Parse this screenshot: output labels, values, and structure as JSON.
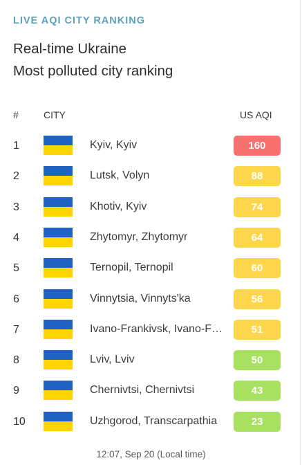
{
  "header": {
    "kicker": "LIVE AQI CITY RANKING",
    "title_line1": "Real-time Ukraine",
    "title_line2": "Most polluted city ranking"
  },
  "columns": {
    "rank": "#",
    "city": "CITY",
    "aqi": "US AQI"
  },
  "rows": [
    {
      "rank": "1",
      "city": "Kyiv, Kyiv",
      "aqi": "160",
      "color": "#f87171"
    },
    {
      "rank": "2",
      "city": "Lutsk, Volyn",
      "aqi": "88",
      "color": "#fdd64b"
    },
    {
      "rank": "3",
      "city": "Khotiv, Kyiv",
      "aqi": "74",
      "color": "#fdd64b"
    },
    {
      "rank": "4",
      "city": "Zhytomyr, Zhytomyr",
      "aqi": "64",
      "color": "#fdd64b"
    },
    {
      "rank": "5",
      "city": "Ternopil, Ternopil",
      "aqi": "60",
      "color": "#fdd64b"
    },
    {
      "rank": "6",
      "city": "Vinnytsia, Vinnyts'ka",
      "aqi": "56",
      "color": "#fdd64b"
    },
    {
      "rank": "7",
      "city": "Ivano-Frankivsk, Ivano-Frankivsk",
      "aqi": "51",
      "color": "#fdd64b"
    },
    {
      "rank": "8",
      "city": "Lviv, Lviv",
      "aqi": "50",
      "color": "#a8e05f"
    },
    {
      "rank": "9",
      "city": "Chernivtsi, Chernivtsi",
      "aqi": "43",
      "color": "#a8e05f"
    },
    {
      "rank": "10",
      "city": "Uzhgorod, Transcarpathia",
      "aqi": "23",
      "color": "#a8e05f"
    }
  ],
  "flag_colors": {
    "top": "#1f62c4",
    "bottom": "#ffd500"
  },
  "footer": "12:07, Sep 20 (Local time)"
}
